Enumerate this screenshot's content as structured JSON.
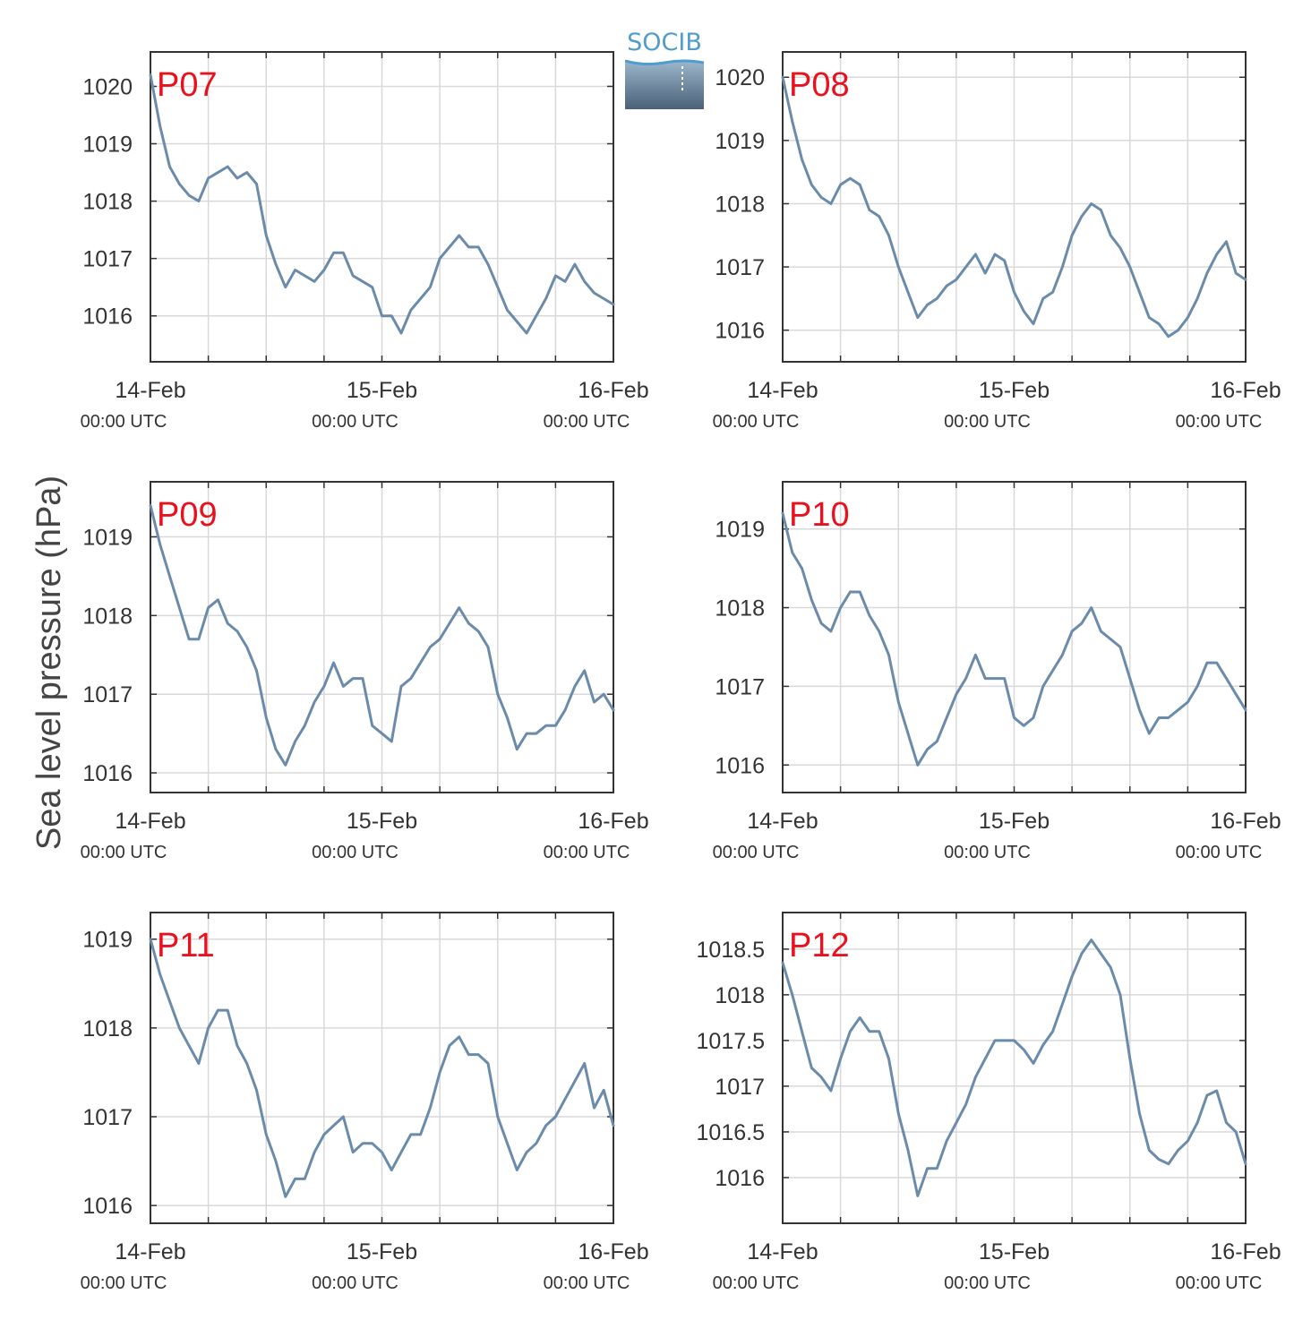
{
  "figure": {
    "ylabel": "Sea level pressure (hPa)",
    "logo_text": "SOCIB",
    "line_color": "#6b8bab",
    "label_color": "#e8121e"
  },
  "chart_data": [
    {
      "type": "line",
      "station": "P07",
      "x_ticks": [
        [
          "14-Feb",
          "00:00 UTC"
        ],
        [
          "15-Feb",
          "00:00 UTC"
        ],
        [
          "16-Feb",
          "00:00 UTC"
        ]
      ],
      "xlim_hours": [
        0,
        48
      ],
      "ylim": [
        1015.2,
        1020.6
      ],
      "yticks": [
        1016,
        1017,
        1018,
        1019,
        1020
      ],
      "ytick_labels": [
        "1016",
        "1017",
        "1018",
        "1019",
        "1020"
      ],
      "x_hours": [
        0,
        1,
        2,
        3,
        4,
        5,
        6,
        7,
        8,
        9,
        10,
        11,
        12,
        13,
        14,
        15,
        16,
        17,
        18,
        19,
        20,
        21,
        22,
        23,
        24,
        25,
        26,
        27,
        28,
        29,
        30,
        31,
        32,
        33,
        34,
        35,
        36,
        37,
        38,
        39,
        40,
        41,
        42,
        43,
        44,
        45,
        46,
        47,
        48
      ],
      "values": [
        1020.2,
        1019.3,
        1018.6,
        1018.3,
        1018.1,
        1018.0,
        1018.4,
        1018.5,
        1018.6,
        1018.4,
        1018.5,
        1018.3,
        1017.4,
        1016.9,
        1016.5,
        1016.8,
        1016.7,
        1016.6,
        1016.8,
        1017.1,
        1017.1,
        1016.7,
        1016.6,
        1016.5,
        1016.0,
        1016.0,
        1015.7,
        1016.1,
        1016.3,
        1016.5,
        1017.0,
        1017.2,
        1017.4,
        1017.2,
        1017.2,
        1016.9,
        1016.5,
        1016.1,
        1015.9,
        1015.7,
        1016.0,
        1016.3,
        1016.7,
        1016.6,
        1016.9,
        1016.6,
        1016.4,
        1016.3,
        1016.2
      ]
    },
    {
      "type": "line",
      "station": "P08",
      "x_ticks": [
        [
          "14-Feb",
          "00:00 UTC"
        ],
        [
          "15-Feb",
          "00:00 UTC"
        ],
        [
          "16-Feb",
          "00:00 UTC"
        ]
      ],
      "xlim_hours": [
        0,
        48
      ],
      "ylim": [
        1015.5,
        1020.4
      ],
      "yticks": [
        1016,
        1017,
        1018,
        1019,
        1020
      ],
      "ytick_labels": [
        "1016",
        "1017",
        "1018",
        "1019",
        "1020"
      ],
      "x_hours": [
        0,
        1,
        2,
        3,
        4,
        5,
        6,
        7,
        8,
        9,
        10,
        11,
        12,
        13,
        14,
        15,
        16,
        17,
        18,
        19,
        20,
        21,
        22,
        23,
        24,
        25,
        26,
        27,
        28,
        29,
        30,
        31,
        32,
        33,
        34,
        35,
        36,
        37,
        38,
        39,
        40,
        41,
        42,
        43,
        44,
        45,
        46,
        47,
        48
      ],
      "values": [
        1020.0,
        1019.3,
        1018.7,
        1018.3,
        1018.1,
        1018.0,
        1018.3,
        1018.4,
        1018.3,
        1017.9,
        1017.8,
        1017.5,
        1017.0,
        1016.6,
        1016.2,
        1016.4,
        1016.5,
        1016.7,
        1016.8,
        1017.0,
        1017.2,
        1016.9,
        1017.2,
        1017.1,
        1016.6,
        1016.3,
        1016.1,
        1016.5,
        1016.6,
        1017.0,
        1017.5,
        1017.8,
        1018.0,
        1017.9,
        1017.5,
        1017.3,
        1017.0,
        1016.6,
        1016.2,
        1016.1,
        1015.9,
        1016.0,
        1016.2,
        1016.5,
        1016.9,
        1017.2,
        1017.4,
        1016.9,
        1016.8
      ]
    },
    {
      "type": "line",
      "station": "P09",
      "x_ticks": [
        [
          "14-Feb",
          "00:00 UTC"
        ],
        [
          "15-Feb",
          "00:00 UTC"
        ],
        [
          "16-Feb",
          "00:00 UTC"
        ]
      ],
      "xlim_hours": [
        0,
        48
      ],
      "ylim": [
        1015.75,
        1019.7
      ],
      "yticks": [
        1016,
        1017,
        1018,
        1019
      ],
      "ytick_labels": [
        "1016",
        "1017",
        "1018",
        "1019"
      ],
      "x_hours": [
        0,
        1,
        2,
        3,
        4,
        5,
        6,
        7,
        8,
        9,
        10,
        11,
        12,
        13,
        14,
        15,
        16,
        17,
        18,
        19,
        20,
        21,
        22,
        23,
        24,
        25,
        26,
        27,
        28,
        29,
        30,
        31,
        32,
        33,
        34,
        35,
        36,
        37,
        38,
        39,
        40,
        41,
        42,
        43,
        44,
        45,
        46,
        47,
        48
      ],
      "values": [
        1019.4,
        1018.9,
        1018.5,
        1018.1,
        1017.7,
        1017.7,
        1018.1,
        1018.2,
        1017.9,
        1017.8,
        1017.6,
        1017.3,
        1016.7,
        1016.3,
        1016.1,
        1016.4,
        1016.6,
        1016.9,
        1017.1,
        1017.4,
        1017.1,
        1017.2,
        1017.2,
        1016.6,
        1016.5,
        1016.4,
        1017.1,
        1017.2,
        1017.4,
        1017.6,
        1017.7,
        1017.9,
        1018.1,
        1017.9,
        1017.8,
        1017.6,
        1017.0,
        1016.7,
        1016.3,
        1016.5,
        1016.5,
        1016.6,
        1016.6,
        1016.8,
        1017.1,
        1017.3,
        1016.9,
        1017.0,
        1016.8
      ]
    },
    {
      "type": "line",
      "station": "P10",
      "x_ticks": [
        [
          "14-Feb",
          "00:00 UTC"
        ],
        [
          "15-Feb",
          "00:00 UTC"
        ],
        [
          "16-Feb",
          "00:00 UTC"
        ]
      ],
      "xlim_hours": [
        0,
        48
      ],
      "ylim": [
        1015.65,
        1019.6
      ],
      "yticks": [
        1016,
        1017,
        1018,
        1019
      ],
      "ytick_labels": [
        "1016",
        "1017",
        "1018",
        "1019"
      ],
      "x_hours": [
        0,
        1,
        2,
        3,
        4,
        5,
        6,
        7,
        8,
        9,
        10,
        11,
        12,
        13,
        14,
        15,
        16,
        17,
        18,
        19,
        20,
        21,
        22,
        23,
        24,
        25,
        26,
        27,
        28,
        29,
        30,
        31,
        32,
        33,
        34,
        35,
        36,
        37,
        38,
        39,
        40,
        41,
        42,
        43,
        44,
        45,
        46,
        47,
        48
      ],
      "values": [
        1019.2,
        1018.7,
        1018.5,
        1018.1,
        1017.8,
        1017.7,
        1018.0,
        1018.2,
        1018.2,
        1017.9,
        1017.7,
        1017.4,
        1016.8,
        1016.4,
        1016.0,
        1016.2,
        1016.3,
        1016.6,
        1016.9,
        1017.1,
        1017.4,
        1017.1,
        1017.1,
        1017.1,
        1016.6,
        1016.5,
        1016.6,
        1017.0,
        1017.2,
        1017.4,
        1017.7,
        1017.8,
        1018.0,
        1017.7,
        1017.6,
        1017.5,
        1017.1,
        1016.7,
        1016.4,
        1016.6,
        1016.6,
        1016.7,
        1016.8,
        1017.0,
        1017.3,
        1017.3,
        1017.1,
        1016.9,
        1016.7
      ]
    },
    {
      "type": "line",
      "station": "P11",
      "x_ticks": [
        [
          "14-Feb",
          "00:00 UTC"
        ],
        [
          "15-Feb",
          "00:00 UTC"
        ],
        [
          "16-Feb",
          "00:00 UTC"
        ]
      ],
      "xlim_hours": [
        0,
        48
      ],
      "ylim": [
        1015.8,
        1019.3
      ],
      "yticks": [
        1016,
        1017,
        1018,
        1019
      ],
      "ytick_labels": [
        "1016",
        "1017",
        "1018",
        "1019"
      ],
      "x_hours": [
        0,
        1,
        2,
        3,
        4,
        5,
        6,
        7,
        8,
        9,
        10,
        11,
        12,
        13,
        14,
        15,
        16,
        17,
        18,
        19,
        20,
        21,
        22,
        23,
        24,
        25,
        26,
        27,
        28,
        29,
        30,
        31,
        32,
        33,
        34,
        35,
        36,
        37,
        38,
        39,
        40,
        41,
        42,
        43,
        44,
        45,
        46,
        47,
        48
      ],
      "values": [
        1019.0,
        1018.6,
        1018.3,
        1018.0,
        1017.8,
        1017.6,
        1018.0,
        1018.2,
        1018.2,
        1017.8,
        1017.6,
        1017.3,
        1016.8,
        1016.5,
        1016.1,
        1016.3,
        1016.3,
        1016.6,
        1016.8,
        1016.9,
        1017.0,
        1016.6,
        1016.7,
        1016.7,
        1016.6,
        1016.4,
        1016.6,
        1016.8,
        1016.8,
        1017.1,
        1017.5,
        1017.8,
        1017.9,
        1017.7,
        1017.7,
        1017.6,
        1017.0,
        1016.7,
        1016.4,
        1016.6,
        1016.7,
        1016.9,
        1017.0,
        1017.2,
        1017.4,
        1017.6,
        1017.1,
        1017.3,
        1016.9
      ]
    },
    {
      "type": "line",
      "station": "P12",
      "x_ticks": [
        [
          "14-Feb",
          "00:00 UTC"
        ],
        [
          "15-Feb",
          "00:00 UTC"
        ],
        [
          "16-Feb",
          "00:00 UTC"
        ]
      ],
      "xlim_hours": [
        0,
        48
      ],
      "ylim": [
        1015.5,
        1018.9
      ],
      "yticks": [
        1016,
        1016.5,
        1017,
        1017.5,
        1018,
        1018.5
      ],
      "ytick_labels": [
        "1016",
        "1016.5",
        "1017",
        "1017.5",
        "1018",
        "1018.5"
      ],
      "x_hours": [
        0,
        1,
        2,
        3,
        4,
        5,
        6,
        7,
        8,
        9,
        10,
        11,
        12,
        13,
        14,
        15,
        16,
        17,
        18,
        19,
        20,
        21,
        22,
        23,
        24,
        25,
        26,
        27,
        28,
        29,
        30,
        31,
        32,
        33,
        34,
        35,
        36,
        37,
        38,
        39,
        40,
        41,
        42,
        43,
        44,
        45,
        46,
        47,
        48
      ],
      "values": [
        1018.35,
        1018.0,
        1017.6,
        1017.2,
        1017.1,
        1016.95,
        1017.3,
        1017.6,
        1017.75,
        1017.6,
        1017.6,
        1017.3,
        1016.7,
        1016.3,
        1015.8,
        1016.1,
        1016.1,
        1016.4,
        1016.6,
        1016.8,
        1017.1,
        1017.3,
        1017.5,
        1017.5,
        1017.5,
        1017.4,
        1017.25,
        1017.45,
        1017.6,
        1017.9,
        1018.2,
        1018.45,
        1018.6,
        1018.45,
        1018.3,
        1018.0,
        1017.3,
        1016.7,
        1016.3,
        1016.2,
        1016.15,
        1016.3,
        1016.4,
        1016.6,
        1016.9,
        1016.95,
        1016.6,
        1016.5,
        1016.15
      ]
    }
  ]
}
